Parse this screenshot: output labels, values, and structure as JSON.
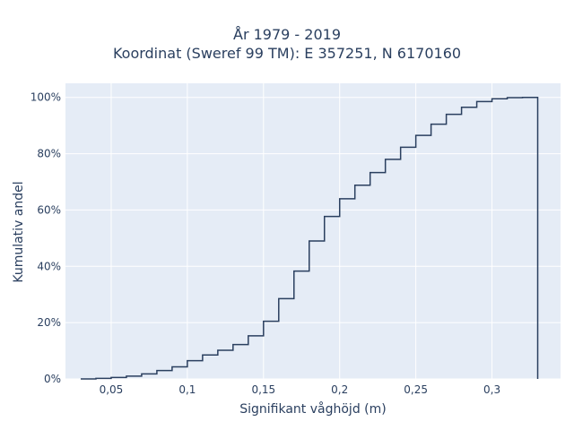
{
  "chart_data": {
    "type": "line",
    "subtype": "step-ecdf",
    "title_lines": [
      "År 1979 - 2019",
      "Koordinat (Sweref 99 TM): E 357251, N 6170160"
    ],
    "xlabel": "Signifikant våghöjd (m)",
    "ylabel": "Kumulativ andel",
    "xlim": [
      0.02,
      0.345
    ],
    "ylim": [
      0,
      1.05
    ],
    "x_tick_values": [
      0.05,
      0.1,
      0.15,
      0.2,
      0.25,
      0.3
    ],
    "x_tick_labels": [
      "0,05",
      "0,1",
      "0,15",
      "0,2",
      "0,25",
      "0,3"
    ],
    "y_tick_values": [
      0,
      0.2,
      0.4,
      0.6,
      0.8,
      1.0
    ],
    "y_tick_labels": [
      "0%",
      "20%",
      "40%",
      "60%",
      "80%",
      "100%"
    ],
    "grid": true,
    "legend": "none",
    "colors": {
      "plot_bg": "#e5ecf6",
      "line": "#2a3f5f",
      "grid": "#ffffff"
    },
    "x": [
      0.03,
      0.04,
      0.05,
      0.06,
      0.07,
      0.08,
      0.09,
      0.1,
      0.11,
      0.12,
      0.13,
      0.14,
      0.15,
      0.16,
      0.17,
      0.18,
      0.19,
      0.2,
      0.21,
      0.22,
      0.23,
      0.24,
      0.25,
      0.26,
      0.27,
      0.28,
      0.29,
      0.3,
      0.31,
      0.32,
      0.33
    ],
    "y": [
      0.0,
      0.002,
      0.005,
      0.01,
      0.018,
      0.03,
      0.043,
      0.065,
      0.085,
      0.102,
      0.122,
      0.153,
      0.205,
      0.285,
      0.383,
      0.49,
      0.577,
      0.64,
      0.688,
      0.733,
      0.78,
      0.823,
      0.865,
      0.905,
      0.94,
      0.965,
      0.985,
      0.995,
      0.999,
      1.0,
      0.0
    ]
  }
}
